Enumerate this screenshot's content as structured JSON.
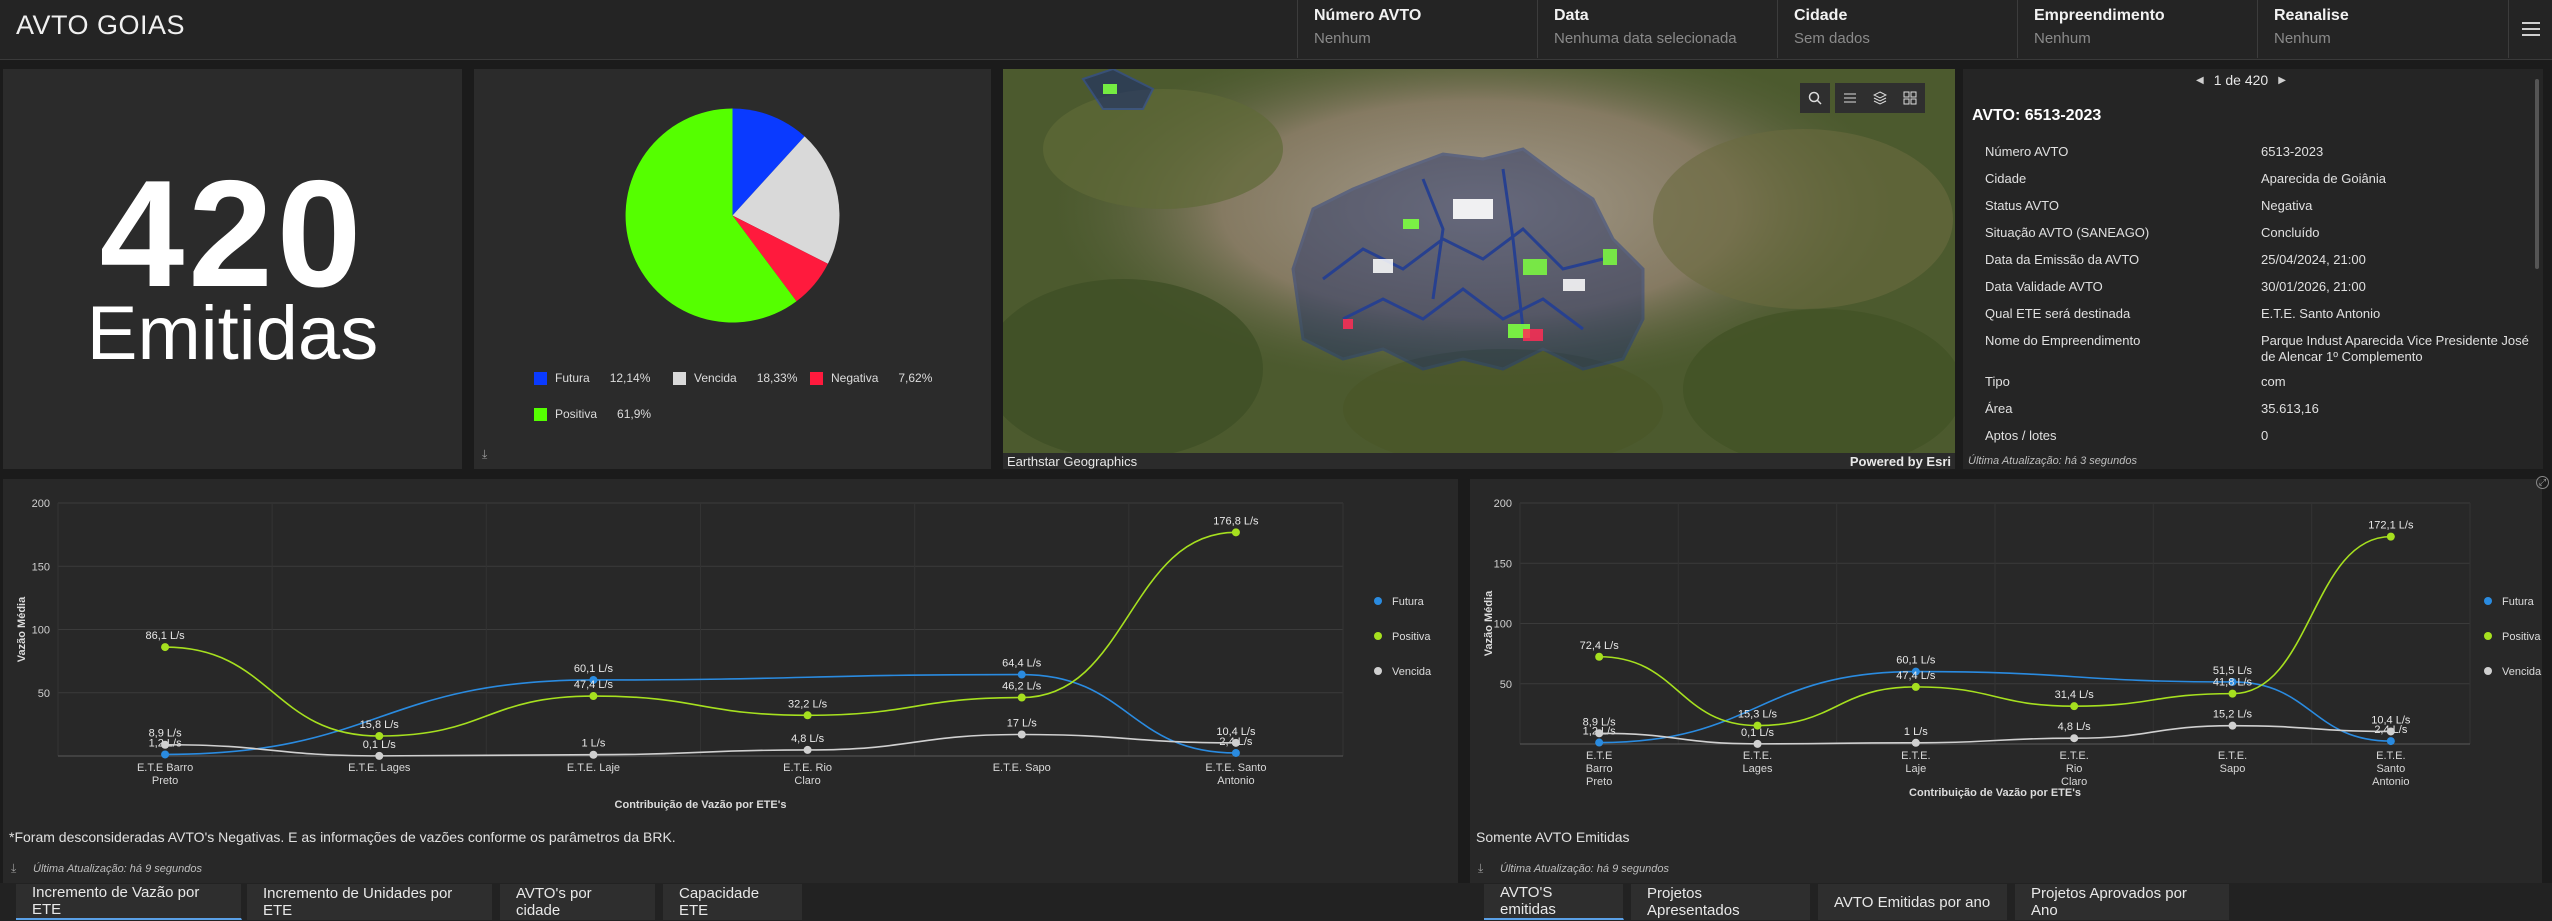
{
  "header": {
    "title": "AVTO GOIAS",
    "filters": [
      {
        "label": "Número AVTO",
        "value": "Nenhum"
      },
      {
        "label": "Data",
        "value": "Nenhuma data selecionada"
      },
      {
        "label": "Cidade",
        "value": "Sem dados"
      },
      {
        "label": "Empreendimento",
        "value": "Nenhum"
      },
      {
        "label": "Reanalise",
        "value": "Nenhum"
      }
    ]
  },
  "kpi": {
    "value": "420",
    "label": "Emitidas"
  },
  "pie": {
    "colors": {
      "futura": "#0a3aff",
      "vencida": "#d9d9d9",
      "negativa": "#ff1a3d",
      "positiva": "#55ff00"
    },
    "legend": [
      {
        "name": "Futura",
        "pct": "12,14%"
      },
      {
        "name": "Vencida",
        "pct": "18,33%"
      },
      {
        "name": "Negativa",
        "pct": "7,62%"
      },
      {
        "name": "Positiva",
        "pct": "61,9%"
      }
    ]
  },
  "map": {
    "credit_left": "Earthstar Geographics",
    "credit_right": "Powered by Esri",
    "tools": [
      "search-icon",
      "list-icon",
      "layers-icon",
      "qr-grid-icon"
    ]
  },
  "details": {
    "pager": "1 de 420",
    "title": "AVTO: 6513-2023",
    "rows": [
      {
        "k": "Número AVTO",
        "v": "6513-2023"
      },
      {
        "k": "Cidade",
        "v": "Aparecida de Goiânia"
      },
      {
        "k": "Status AVTO",
        "v": "Negativa"
      },
      {
        "k": "Situação AVTO (SANEAGO)",
        "v": "Concluído"
      },
      {
        "k": "Data da Emissão da AVTO",
        "v": "25/04/2024, 21:00"
      },
      {
        "k": "Data Validade AVTO",
        "v": "30/01/2026, 21:00"
      },
      {
        "k": "Qual ETE será destinada",
        "v": "E.T.E. Santo Antonio"
      },
      {
        "k": "Nome do Empreendimento",
        "v": "Parque Indust Aparecida Vice Presidente José de Alencar 1º Complemento"
      },
      {
        "k": "Tipo",
        "v": "com"
      },
      {
        "k": "Área",
        "v": "35.613,16"
      },
      {
        "k": "Aptos / lotes",
        "v": "0"
      }
    ],
    "updated": "Última Atualização: há 3 segundos"
  },
  "chart_data": [
    {
      "type": "line",
      "ylabel": "Vazão Média",
      "xlabel": "Contribuição de Vazão por ETE's",
      "ylim": [
        0,
        200
      ],
      "yticks": [
        50,
        100,
        150,
        200
      ],
      "grid": true,
      "legend_position": "right",
      "categories": [
        "E.T.E Barro Preto",
        "E.T.E. Lages",
        "E.T.E. Laje",
        "E.T.E. Rio Claro",
        "E.T.E. Sapo",
        "E.T.E. Santo Antonio"
      ],
      "series": [
        {
          "name": "Futura",
          "color": "#2a8be0",
          "values": [
            1.2,
            null,
            60.1,
            null,
            64.4,
            2.4
          ],
          "labels": [
            "1,2 L/s",
            "",
            "60,1 L/s",
            "",
            "64,4 L/s",
            "2,4 L/s"
          ]
        },
        {
          "name": "Positiva",
          "color": "#a6e01f",
          "values": [
            86.1,
            15.8,
            47.4,
            32.2,
            46.2,
            176.8
          ],
          "labels": [
            "86,1 L/s",
            "15,8 L/s",
            "47,4 L/s",
            "32,2 L/s",
            "46,2 L/s",
            "176,8 L/s"
          ]
        },
        {
          "name": "Vencida",
          "color": "#d0d0d0",
          "values": [
            8.9,
            0.1,
            1,
            4.8,
            17,
            10.4
          ],
          "labels": [
            "8,9 L/s",
            "0,1 L/s",
            "1 L/s",
            "4,8 L/s",
            "17 L/s",
            "10,4 L/s"
          ]
        }
      ],
      "note": "*Foram desconsideradas AVTO's Negativas. E as informações de vazões conforme os parâmetros da BRK.",
      "updated": "Última Atualização: há 9 segundos"
    },
    {
      "type": "line",
      "ylabel": "Vazão Média",
      "xlabel": "Contribuição de Vazão por ETE's",
      "ylim": [
        0,
        200
      ],
      "yticks": [
        50,
        100,
        150,
        200
      ],
      "grid": true,
      "legend_position": "right",
      "categories": [
        "E.T.E Barro Preto",
        "E.T.E. Lages",
        "E.T.E. Laje",
        "E.T.E. Rio Claro",
        "E.T.E. Sapo",
        "E.T.E. Santo Antonio"
      ],
      "series": [
        {
          "name": "Futura",
          "color": "#2a8be0",
          "values": [
            1.2,
            null,
            60.1,
            null,
            51.5,
            2.4
          ],
          "labels": [
            "1,2 L/s",
            "",
            "60,1 L/s",
            "",
            "51,5 L/s",
            "2,4 L/s"
          ]
        },
        {
          "name": "Positiva",
          "color": "#a6e01f",
          "values": [
            72.4,
            15.3,
            47.4,
            31.4,
            41.8,
            172.1
          ],
          "labels": [
            "72,4 L/s",
            "15,3 L/s",
            "47,4 L/s",
            "31,4 L/s",
            "41,8 L/s",
            "172,1 L/s"
          ]
        },
        {
          "name": "Vencida",
          "color": "#d0d0d0",
          "values": [
            8.9,
            0.1,
            1,
            4.8,
            15.2,
            10.4
          ],
          "labels": [
            "8,9 L/s",
            "0,1 L/s",
            "1 L/s",
            "4,8 L/s",
            "15,2 L/s",
            "10,4 L/s"
          ]
        }
      ],
      "note": "Somente AVTO Emitidas",
      "updated": "Última Atualização: há 9 segundos"
    }
  ],
  "tabs_left": [
    {
      "label": "Incremento de Vazão por ETE"
    },
    {
      "label": "Incremento de Unidades por ETE"
    },
    {
      "label": "AVTO's por cidade"
    },
    {
      "label": "Capacidade ETE"
    }
  ],
  "tabs_right": [
    {
      "label": "AVTO'S emitidas"
    },
    {
      "label": "Projetos Apresentados"
    },
    {
      "label": "AVTO Emitidas por ano"
    },
    {
      "label": "Projetos Aprovados por Ano"
    }
  ]
}
